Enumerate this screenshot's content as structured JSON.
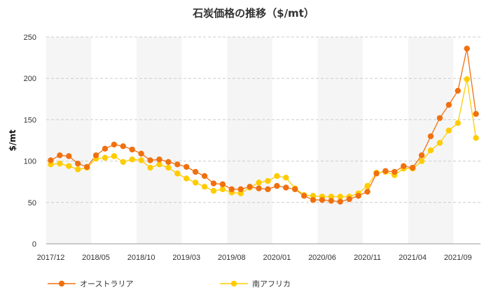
{
  "chart_data": {
    "type": "line",
    "title": "石炭価格の推移（$/mt）",
    "xlabel": "",
    "ylabel": "$/mt",
    "ylim": [
      0,
      250
    ],
    "yticks": [
      0,
      50,
      100,
      150,
      200,
      250
    ],
    "grid": true,
    "legend_position": "bottom",
    "x_tick_labels": [
      "2017/12",
      "2018/05",
      "2018/10",
      "2019/03",
      "2019/08",
      "2020/01",
      "2020/06",
      "2020/11",
      "2021/04",
      "2021/09"
    ],
    "x": [
      "2017/12",
      "2018/01",
      "2018/02",
      "2018/03",
      "2018/04",
      "2018/05",
      "2018/06",
      "2018/07",
      "2018/08",
      "2018/09",
      "2018/10",
      "2018/11",
      "2018/12",
      "2019/01",
      "2019/02",
      "2019/03",
      "2019/04",
      "2019/05",
      "2019/06",
      "2019/07",
      "2019/08",
      "2019/09",
      "2019/10",
      "2019/11",
      "2019/12",
      "2020/01",
      "2020/02",
      "2020/03",
      "2020/04",
      "2020/05",
      "2020/06",
      "2020/07",
      "2020/08",
      "2020/09",
      "2020/10",
      "2020/11",
      "2020/12",
      "2021/01",
      "2021/02",
      "2021/03",
      "2021/04",
      "2021/05",
      "2021/06",
      "2021/07",
      "2021/08",
      "2021/09",
      "2021/10",
      "2021/11"
    ],
    "series": [
      {
        "name": "オーストラリア",
        "color": "#f07010",
        "values": [
          101,
          107,
          106,
          97,
          93,
          107,
          115,
          120,
          118,
          114,
          109,
          101,
          102,
          99,
          96,
          93,
          87,
          82,
          73,
          72,
          66,
          66,
          69,
          67,
          66,
          70,
          68,
          66,
          58,
          53,
          53,
          52,
          51,
          54,
          58,
          63,
          85,
          88,
          87,
          94,
          92,
          107,
          130,
          152,
          168,
          185,
          236,
          157
        ]
      },
      {
        "name": "南アフリカ",
        "color": "#ffcc00",
        "values": [
          96,
          97,
          94,
          90,
          92,
          103,
          104,
          106,
          99,
          102,
          101,
          92,
          96,
          92,
          85,
          79,
          74,
          69,
          64,
          66,
          62,
          61,
          68,
          74,
          76,
          82,
          80,
          67,
          59,
          58,
          57,
          57,
          57,
          57,
          61,
          70,
          86,
          87,
          83,
          91,
          91,
          100,
          113,
          122,
          137,
          146,
          199,
          128
        ]
      }
    ]
  }
}
